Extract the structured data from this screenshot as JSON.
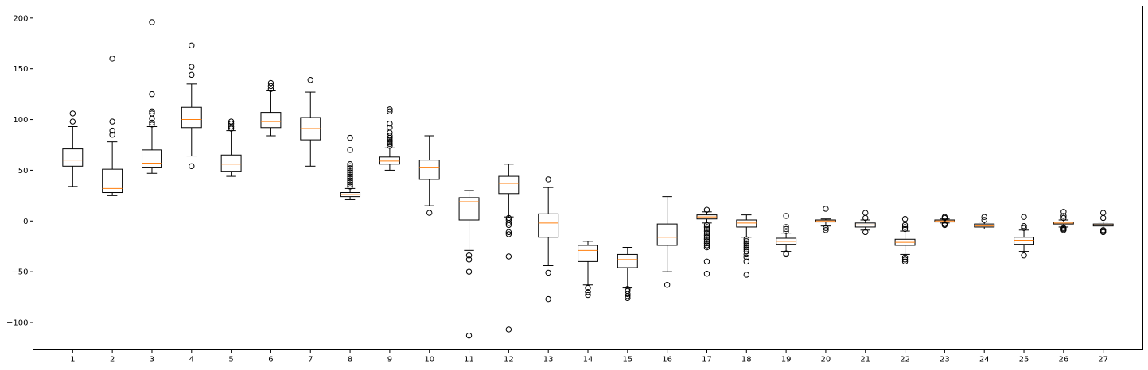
{
  "chart_data": {
    "type": "box",
    "categories": [
      "1",
      "2",
      "3",
      "4",
      "5",
      "6",
      "7",
      "8",
      "9",
      "10",
      "11",
      "12",
      "13",
      "14",
      "15",
      "16",
      "17",
      "18",
      "19",
      "20",
      "21",
      "22",
      "23",
      "24",
      "25",
      "26",
      "27"
    ],
    "title": "",
    "xlabel": "",
    "ylabel": "",
    "ylim": [
      -127,
      212
    ],
    "yticks": [
      -100,
      -50,
      0,
      50,
      100,
      150,
      200
    ],
    "ytick_labels": [
      "−100",
      "−50",
      "0",
      "50",
      "100",
      "150",
      "200"
    ],
    "grid": false,
    "legend": "none",
    "colors": {
      "box": "#000000",
      "median": "#ff7f0e",
      "flier": "#000000",
      "background": "#ffffff"
    },
    "boxes": [
      {
        "label": "1",
        "whislo": 34,
        "q1": 54,
        "med": 60,
        "q3": 71,
        "whishi": 93,
        "fliers": [
          98,
          106
        ]
      },
      {
        "label": "2",
        "whislo": 25,
        "q1": 28,
        "med": 32,
        "q3": 51,
        "whishi": 78,
        "fliers": [
          85,
          89,
          98,
          160
        ]
      },
      {
        "label": "3",
        "whislo": 47,
        "q1": 53,
        "med": 57,
        "q3": 70,
        "whishi": 93,
        "fliers": [
          95,
          97,
          101,
          106,
          108,
          125,
          196
        ]
      },
      {
        "label": "4",
        "whislo": 64,
        "q1": 92,
        "med": 100,
        "q3": 112,
        "whishi": 135,
        "fliers": [
          54,
          144,
          152,
          173
        ]
      },
      {
        "label": "5",
        "whislo": 44,
        "q1": 49,
        "med": 56,
        "q3": 65,
        "whishi": 89,
        "fliers": [
          91,
          93,
          96,
          98
        ]
      },
      {
        "label": "6",
        "whislo": 84,
        "q1": 92,
        "med": 98,
        "q3": 107,
        "whishi": 129,
        "fliers": [
          130,
          133,
          136
        ]
      },
      {
        "label": "7",
        "whislo": 54,
        "q1": 80,
        "med": 91,
        "q3": 102,
        "whishi": 127,
        "fliers": [
          139
        ]
      },
      {
        "label": "8",
        "whislo": 21,
        "q1": 24,
        "med": 26,
        "q3": 28,
        "whishi": 32,
        "fliers": [
          34,
          36,
          38,
          40,
          42,
          44,
          46,
          48,
          50,
          52,
          54,
          56,
          70,
          82
        ]
      },
      {
        "label": "9",
        "whislo": 50,
        "q1": 56,
        "med": 59,
        "q3": 63,
        "whishi": 72,
        "fliers": [
          74,
          76,
          78,
          80,
          82,
          84,
          87,
          92,
          96,
          108,
          110
        ]
      },
      {
        "label": "10",
        "whislo": 15,
        "q1": 41,
        "med": 53,
        "q3": 60,
        "whishi": 84,
        "fliers": [
          8
        ]
      },
      {
        "label": "11",
        "whislo": -29,
        "q1": 1,
        "med": 19,
        "q3": 23,
        "whishi": 30,
        "fliers": [
          -34,
          -38,
          -50,
          -113
        ]
      },
      {
        "label": "12",
        "whislo": 4,
        "q1": 27,
        "med": 37,
        "q3": 44,
        "whishi": 56,
        "fliers": [
          3,
          1,
          -2,
          -4,
          -11,
          -13,
          -35,
          -107
        ]
      },
      {
        "label": "13",
        "whislo": -44,
        "q1": -16,
        "med": -2,
        "q3": 7,
        "whishi": 33,
        "fliers": [
          41,
          -51,
          -77
        ]
      },
      {
        "label": "14",
        "whislo": -63,
        "q1": -40,
        "med": -29,
        "q3": -24,
        "whishi": -20,
        "fliers": [
          -66,
          -70,
          -73
        ]
      },
      {
        "label": "15",
        "whislo": -66,
        "q1": -46,
        "med": -38,
        "q3": -33,
        "whishi": -26,
        "fliers": [
          -67,
          -69,
          -72,
          -74,
          -76
        ]
      },
      {
        "label": "16",
        "whislo": -50,
        "q1": -24,
        "med": -16,
        "q3": -3,
        "whishi": 24,
        "fliers": [
          -63
        ]
      },
      {
        "label": "17",
        "whislo": -2,
        "q1": 2,
        "med": 4,
        "q3": 6,
        "whishi": 9,
        "fliers": [
          11,
          -4,
          -6,
          -8,
          -10,
          -12,
          -14,
          -16,
          -18,
          -20,
          -22,
          -24,
          -26,
          -40,
          -52
        ]
      },
      {
        "label": "18",
        "whislo": -16,
        "q1": -6,
        "med": -2,
        "q3": 1,
        "whishi": 6,
        "fliers": [
          -18,
          -20,
          -22,
          -24,
          -26,
          -28,
          -30,
          -33,
          -36,
          -40,
          -53
        ]
      },
      {
        "label": "19",
        "whislo": -30,
        "q1": -23,
        "med": -20,
        "q3": -17,
        "whishi": -12,
        "fliers": [
          -10,
          -8,
          -6,
          5,
          -32,
          -33
        ]
      },
      {
        "label": "20",
        "whislo": -5,
        "q1": -1,
        "med": 0,
        "q3": 1,
        "whishi": 2,
        "fliers": [
          12,
          -7,
          -9
        ]
      },
      {
        "label": "21",
        "whislo": -9,
        "q1": -6,
        "med": -4,
        "q3": -2,
        "whishi": 1,
        "fliers": [
          3,
          8,
          -11
        ]
      },
      {
        "label": "22",
        "whislo": -33,
        "q1": -24,
        "med": -21,
        "q3": -18,
        "whishi": -10,
        "fliers": [
          2,
          -8,
          -6,
          -4,
          -36,
          -38,
          -40
        ]
      },
      {
        "label": "23",
        "whislo": -2,
        "q1": -1,
        "med": 0,
        "q3": 1,
        "whishi": 2,
        "fliers": [
          3,
          4,
          -3,
          -4
        ]
      },
      {
        "label": "24",
        "whislo": -8,
        "q1": -6,
        "med": -5,
        "q3": -3,
        "whishi": -1,
        "fliers": [
          1,
          4
        ]
      },
      {
        "label": "25",
        "whislo": -30,
        "q1": -23,
        "med": -19,
        "q3": -16,
        "whishi": -9,
        "fliers": [
          -7,
          -5,
          4,
          -34
        ]
      },
      {
        "label": "26",
        "whislo": -6,
        "q1": -3,
        "med": -2,
        "q3": -1,
        "whishi": 1,
        "fliers": [
          3,
          5,
          9,
          -7,
          -8,
          -9
        ]
      },
      {
        "label": "27",
        "whislo": -8,
        "q1": -5,
        "med": -4,
        "q3": -3,
        "whishi": -1,
        "fliers": [
          3,
          8,
          -9,
          -10,
          -11
        ]
      }
    ]
  }
}
